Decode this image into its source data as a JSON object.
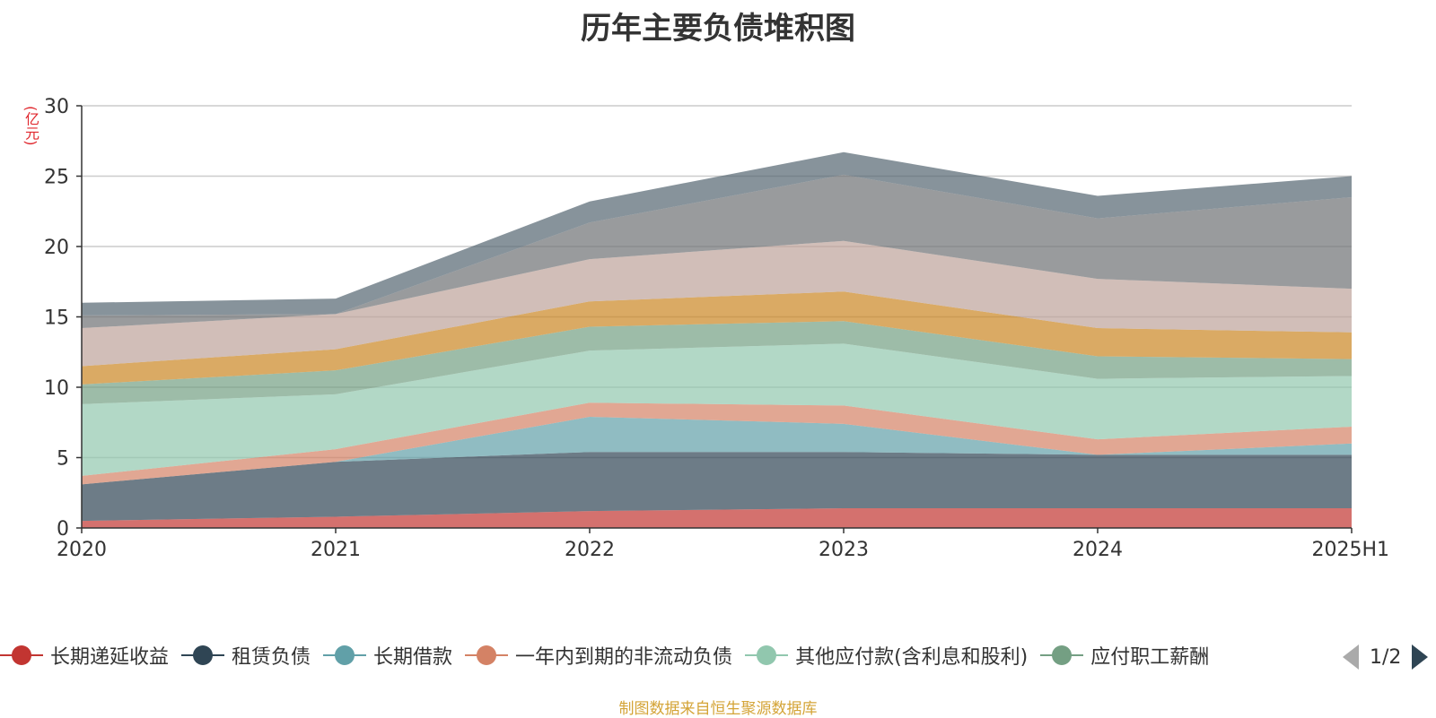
{
  "title": "历年主要负债堆积图",
  "unit_label": "(亿元)",
  "source_note": "制图数据来自恒生聚源数据库",
  "pager": {
    "text": "1/2"
  },
  "chart_data": {
    "type": "area",
    "stacked": true,
    "title": "历年主要负债堆积图",
    "ylabel": "(亿元)",
    "x": [
      "2020",
      "2021",
      "2022",
      "2023",
      "2024",
      "2025H1"
    ],
    "ylim": [
      0,
      30
    ],
    "yticks": [
      0,
      5,
      10,
      15,
      20,
      25,
      30
    ],
    "grid": true,
    "legend_position": "bottom",
    "series": [
      {
        "name": "长期递延收益",
        "color": "#c23531",
        "values": [
          0.5,
          0.8,
          1.2,
          1.4,
          1.4,
          1.4
        ]
      },
      {
        "name": "租赁负债",
        "color": "#2f4554",
        "values": [
          2.6,
          3.9,
          4.2,
          4.0,
          3.8,
          3.8
        ]
      },
      {
        "name": "长期借款",
        "color": "#61a0a8",
        "values": [
          0.0,
          0.0,
          2.5,
          2.0,
          0.0,
          0.8
        ]
      },
      {
        "name": "一年内到期的非流动负债",
        "color": "#d48265",
        "values": [
          0.6,
          0.9,
          1.0,
          1.3,
          1.1,
          1.2
        ]
      },
      {
        "name": "其他应付款(含利息和股利)",
        "color": "#91c7ae",
        "values": [
          5.1,
          3.9,
          3.7,
          4.4,
          4.3,
          3.6
        ]
      },
      {
        "name": "应付职工薪酬",
        "color": "#749f83",
        "values": [
          1.4,
          1.7,
          1.7,
          1.6,
          1.6,
          1.2
        ]
      },
      {
        "name": "",
        "color": "#ca8622",
        "values": [
          1.3,
          1.5,
          1.8,
          2.1,
          2.0,
          1.9
        ]
      },
      {
        "name": "",
        "color": "#bda29a",
        "values": [
          2.7,
          2.5,
          3.0,
          3.6,
          3.5,
          3.1
        ]
      },
      {
        "name": "",
        "color": "#6e7074",
        "values": [
          0.9,
          0.0,
          2.6,
          4.7,
          4.3,
          6.5
        ]
      },
      {
        "name": "",
        "color": "#546570",
        "values": [
          0.9,
          1.1,
          1.5,
          1.6,
          1.6,
          1.5
        ]
      }
    ]
  }
}
